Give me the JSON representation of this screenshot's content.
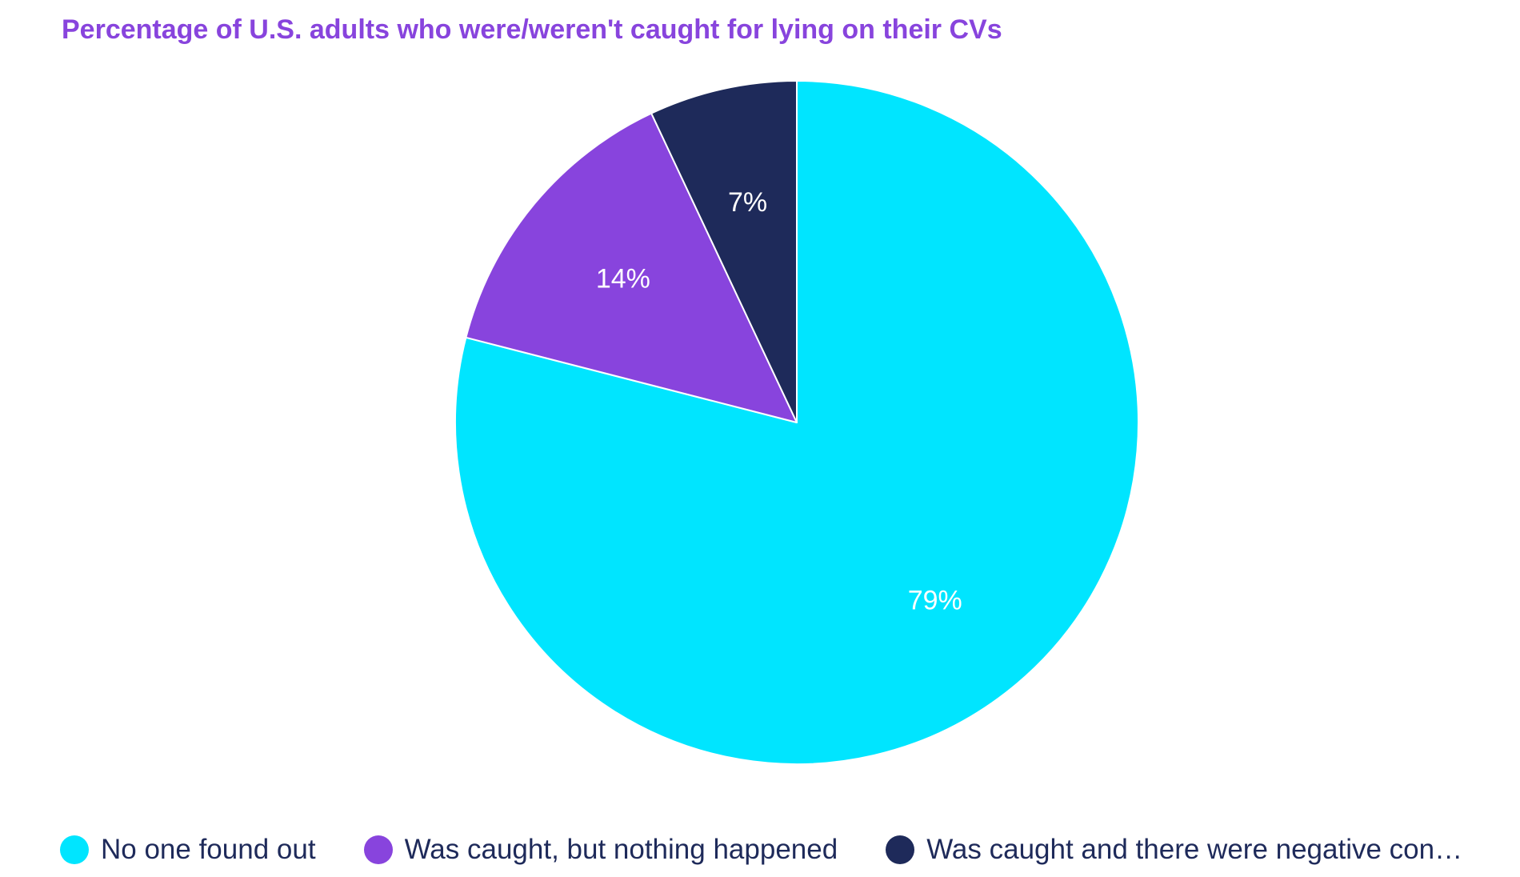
{
  "colors": {
    "title": "#8844dd",
    "legend_text": "#1e2a5a",
    "slice_border": "#ffffff",
    "label": "#ffffff"
  },
  "chart_data": {
    "type": "pie",
    "title": "Percentage of U.S. adults who were/weren't caught for lying on their CVs",
    "start_angle_deg": 0,
    "direction": "clockwise",
    "legend_position": "bottom",
    "slices": [
      {
        "label": "No one found out",
        "value": 79,
        "display": "79%",
        "color": "#00e5ff"
      },
      {
        "label": "Was caught, but nothing happened",
        "value": 14,
        "display": "14%",
        "color": "#8844dd"
      },
      {
        "label": "Was caught and there were negative consequences",
        "legend_display": "Was caught and there were negative con…",
        "value": 7,
        "display": "7%",
        "color": "#1e2a5a"
      }
    ]
  }
}
